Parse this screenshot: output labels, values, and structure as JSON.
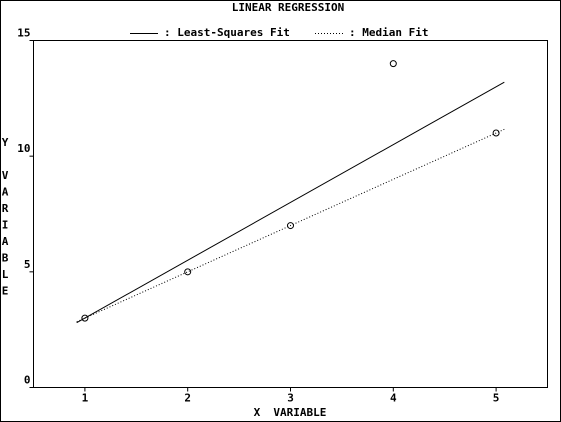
{
  "chart_data": {
    "type": "scatter",
    "title": "LINEAR REGRESSION",
    "xlabel": "X  VARIABLE",
    "ylabel": "Y VARIABLE",
    "points": {
      "x": [
        1,
        2,
        3,
        4,
        5
      ],
      "values": [
        3,
        5,
        7,
        14,
        11
      ],
      "color": "#000000"
    },
    "series": [
      {
        "name": ": Least-Squares Fit",
        "color": "#000000",
        "dash": "solid",
        "x": [
          0.92,
          5.08
        ],
        "values": [
          2.8,
          13.2
        ]
      },
      {
        "name": ": Median Fit",
        "color": "#000000",
        "dash": "dotted",
        "x": [
          0.92,
          5.08
        ],
        "values": [
          2.84,
          11.16
        ]
      }
    ],
    "xlim": [
      0.5,
      5.5
    ],
    "ylim": [
      0,
      15
    ],
    "xticks": [
      1,
      2,
      3,
      4,
      5
    ],
    "yticks": [
      0,
      5,
      10,
      15
    ]
  }
}
